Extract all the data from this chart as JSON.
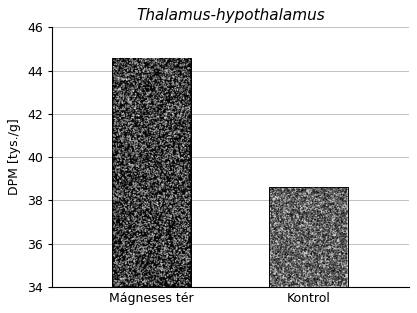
{
  "title": "Thalamus-hypothalamus",
  "categories": [
    "Mágneses tér",
    "Kontrol"
  ],
  "values": [
    44.6,
    38.6
  ],
  "bar_colors": [
    "#080808",
    "#c8c8c8"
  ],
  "ylabel": "DPM [tys./g]",
  "ylim": [
    34,
    46
  ],
  "yticks": [
    34,
    36,
    38,
    40,
    42,
    44,
    46
  ],
  "background_color": "#ffffff",
  "title_fontsize": 11,
  "label_fontsize": 9,
  "tick_fontsize": 9,
  "x_positions": [
    0.28,
    0.72
  ],
  "bar_width": 0.22
}
